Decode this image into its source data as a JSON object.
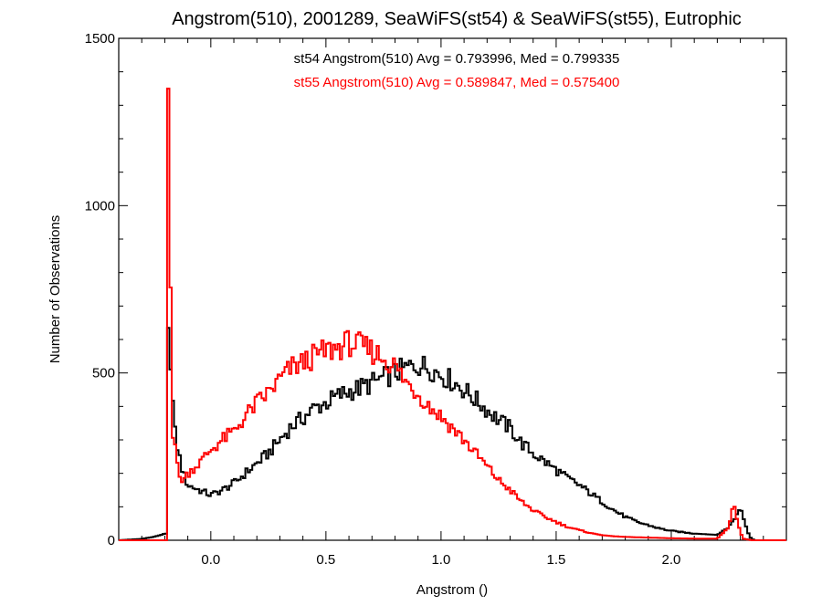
{
  "chart_data": {
    "type": "histogram-step",
    "title": "Angstrom(510), 2001289, SeaWiFS(st54) & SeaWiFS(st55), Eutrophic",
    "xlabel": "Angstrom ()",
    "ylabel": "Number of Observations",
    "xlim": [
      -0.4,
      2.5
    ],
    "ylim": [
      0,
      1500
    ],
    "xticks": [
      0.0,
      0.5,
      1.0,
      1.5,
      2.0
    ],
    "xtick_labels": [
      "0.0",
      "0.5",
      "1.0",
      "1.5",
      "2.0"
    ],
    "yticks": [
      0,
      500,
      1000,
      1500
    ],
    "ytick_labels": [
      "0",
      "500",
      "1000",
      "1500"
    ],
    "grid": false,
    "bin_width": 0.01,
    "series": [
      {
        "name": "st54",
        "color": "#000000",
        "stats_text": "st54 Angstrom(510) Avg = 0.793996, Med = 0.799335",
        "points": [
          [
            -0.4,
            0
          ],
          [
            -0.3,
            4
          ],
          [
            -0.25,
            10
          ],
          [
            -0.22,
            15
          ],
          [
            -0.2,
            20
          ],
          [
            -0.19,
            600
          ],
          [
            -0.18,
            610
          ],
          [
            -0.17,
            480
          ],
          [
            -0.16,
            340
          ],
          [
            -0.15,
            300
          ],
          [
            -0.14,
            260
          ],
          [
            -0.12,
            200
          ],
          [
            -0.1,
            165
          ],
          [
            -0.05,
            150
          ],
          [
            0.0,
            135
          ],
          [
            0.05,
            150
          ],
          [
            0.1,
            170
          ],
          [
            0.15,
            200
          ],
          [
            0.2,
            230
          ],
          [
            0.25,
            260
          ],
          [
            0.3,
            300
          ],
          [
            0.35,
            340
          ],
          [
            0.4,
            365
          ],
          [
            0.45,
            395
          ],
          [
            0.5,
            410
          ],
          [
            0.55,
            430
          ],
          [
            0.6,
            445
          ],
          [
            0.65,
            455
          ],
          [
            0.7,
            470
          ],
          [
            0.75,
            485
          ],
          [
            0.8,
            500
          ],
          [
            0.85,
            515
          ],
          [
            0.9,
            525
          ],
          [
            0.95,
            515
          ],
          [
            1.0,
            495
          ],
          [
            1.05,
            475
          ],
          [
            1.1,
            450
          ],
          [
            1.15,
            420
          ],
          [
            1.2,
            390
          ],
          [
            1.25,
            360
          ],
          [
            1.3,
            335
          ],
          [
            1.35,
            290
          ],
          [
            1.4,
            260
          ],
          [
            1.45,
            235
          ],
          [
            1.5,
            210
          ],
          [
            1.55,
            185
          ],
          [
            1.6,
            165
          ],
          [
            1.65,
            140
          ],
          [
            1.7,
            115
          ],
          [
            1.75,
            90
          ],
          [
            1.8,
            70
          ],
          [
            1.85,
            55
          ],
          [
            1.9,
            45
          ],
          [
            1.95,
            35
          ],
          [
            2.0,
            28
          ],
          [
            2.05,
            24
          ],
          [
            2.1,
            20
          ],
          [
            2.15,
            18
          ],
          [
            2.2,
            16
          ],
          [
            2.25,
            40
          ],
          [
            2.28,
            70
          ],
          [
            2.3,
            100
          ],
          [
            2.32,
            55
          ],
          [
            2.34,
            10
          ],
          [
            2.36,
            0
          ],
          [
            2.5,
            0
          ]
        ]
      },
      {
        "name": "st55",
        "color": "#ff0000",
        "stats_text": "st55 Angstrom(510) Avg = 0.589847, Med = 0.575400",
        "points": [
          [
            -0.4,
            0
          ],
          [
            -0.2,
            0
          ],
          [
            -0.19,
            1350
          ],
          [
            -0.18,
            800
          ],
          [
            -0.17,
            320
          ],
          [
            -0.16,
            330
          ],
          [
            -0.15,
            250
          ],
          [
            -0.14,
            190
          ],
          [
            -0.12,
            180
          ],
          [
            -0.1,
            200
          ],
          [
            -0.05,
            230
          ],
          [
            0.0,
            270
          ],
          [
            0.05,
            300
          ],
          [
            0.1,
            325
          ],
          [
            0.15,
            370
          ],
          [
            0.2,
            410
          ],
          [
            0.25,
            440
          ],
          [
            0.3,
            480
          ],
          [
            0.35,
            515
          ],
          [
            0.4,
            530
          ],
          [
            0.45,
            550
          ],
          [
            0.5,
            565
          ],
          [
            0.55,
            575
          ],
          [
            0.6,
            590
          ],
          [
            0.65,
            580
          ],
          [
            0.7,
            565
          ],
          [
            0.75,
            545
          ],
          [
            0.8,
            520
          ],
          [
            0.85,
            470
          ],
          [
            0.9,
            440
          ],
          [
            0.95,
            400
          ],
          [
            1.0,
            370
          ],
          [
            1.05,
            335
          ],
          [
            1.1,
            300
          ],
          [
            1.15,
            260
          ],
          [
            1.2,
            220
          ],
          [
            1.25,
            180
          ],
          [
            1.3,
            150
          ],
          [
            1.35,
            115
          ],
          [
            1.4,
            90
          ],
          [
            1.45,
            70
          ],
          [
            1.5,
            55
          ],
          [
            1.55,
            40
          ],
          [
            1.6,
            30
          ],
          [
            1.65,
            22
          ],
          [
            1.7,
            15
          ],
          [
            1.75,
            12
          ],
          [
            1.8,
            10
          ],
          [
            1.9,
            8
          ],
          [
            2.0,
            6
          ],
          [
            2.1,
            5
          ],
          [
            2.2,
            5
          ],
          [
            2.25,
            40
          ],
          [
            2.27,
            110
          ],
          [
            2.29,
            50
          ],
          [
            2.31,
            5
          ],
          [
            2.35,
            0
          ],
          [
            2.5,
            0
          ]
        ]
      }
    ]
  }
}
